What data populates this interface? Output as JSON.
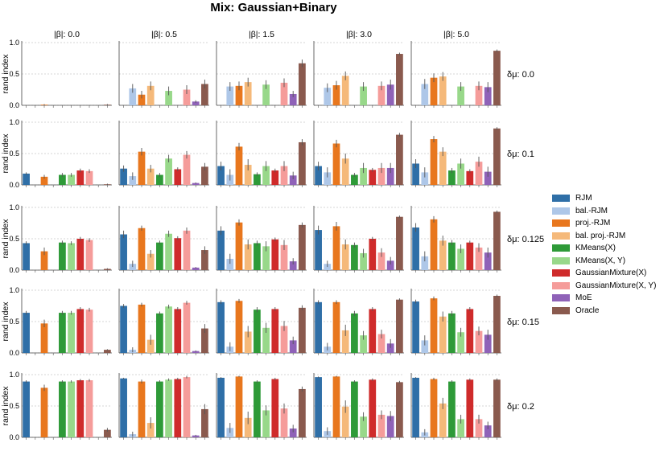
{
  "chart_data": {
    "type": "bar",
    "title": "Mix: Gaussian+Binary",
    "ylabel": "rand index",
    "ylim": [
      0,
      1
    ],
    "yticks": [
      "0.0",
      "0.5",
      "1.0"
    ],
    "grid": true,
    "legend_position": "right",
    "column_labels": [
      "|β|: 0.0",
      "|β|: 0.5",
      "|β|: 1.5",
      "|β|: 3.0",
      "|β|: 5.0"
    ],
    "row_labels": [
      "δμ: 0.0",
      "δμ: 0.1",
      "δμ: 0.125",
      "δμ: 0.15",
      "δμ: 0.2"
    ],
    "methods": [
      "RJM",
      "bal.-RJM",
      "proj.-RJM",
      "bal. proj.-RJM",
      "KMeans(X)",
      "KMeans(X, Y)",
      "GaussianMixture(X)",
      "GaussianMixture(X, Y)",
      "MoE",
      "Oracle"
    ],
    "colors": [
      "#2f6fa7",
      "#aec7e8",
      "#e8771e",
      "#f5b97a",
      "#2e9a38",
      "#98d88a",
      "#cf2b2b",
      "#f59c9a",
      "#8f62b8",
      "#8a5a4e"
    ],
    "panels": [
      [
        {
          "values": [
            0,
            0,
            0.01,
            0,
            0,
            0,
            0,
            0,
            0,
            0.01
          ],
          "errors": [
            0,
            0,
            0.01,
            0,
            0,
            0,
            0,
            0,
            0,
            0.01
          ]
        },
        {
          "values": [
            0,
            0.27,
            0.17,
            0.31,
            0,
            0.23,
            0,
            0.25,
            0.06,
            0.34
          ],
          "errors": [
            0,
            0.07,
            0.06,
            0.07,
            0,
            0.07,
            0,
            0.07,
            0.02,
            0.07
          ]
        },
        {
          "values": [
            0,
            0.3,
            0.31,
            0.37,
            0,
            0.33,
            0,
            0.36,
            0.18,
            0.67
          ],
          "errors": [
            0,
            0.07,
            0.07,
            0.07,
            0,
            0.07,
            0,
            0.07,
            0.05,
            0.06
          ]
        },
        {
          "values": [
            0,
            0.28,
            0.32,
            0.47,
            0,
            0.3,
            0,
            0.31,
            0.33,
            0.82
          ],
          "errors": [
            0,
            0.07,
            0.07,
            0.07,
            0,
            0.07,
            0,
            0.07,
            0.08,
            0.02
          ]
        },
        {
          "values": [
            0,
            0.34,
            0.44,
            0.46,
            0,
            0.3,
            0,
            0.31,
            0.29,
            0.87
          ],
          "errors": [
            0,
            0.08,
            0.07,
            0.07,
            0,
            0.07,
            0,
            0.07,
            0.08,
            0.02
          ]
        }
      ],
      [
        {
          "values": [
            0.18,
            0,
            0.13,
            0,
            0.16,
            0.16,
            0.23,
            0.22,
            0,
            0.01
          ],
          "errors": [
            0.02,
            0,
            0.03,
            0,
            0.03,
            0.03,
            0.03,
            0.03,
            0,
            0.01
          ]
        },
        {
          "values": [
            0.26,
            0.14,
            0.53,
            0.26,
            0.16,
            0.42,
            0.25,
            0.48,
            0.03,
            0.29
          ],
          "errors": [
            0.05,
            0.06,
            0.06,
            0.06,
            0.03,
            0.06,
            0.03,
            0.06,
            0.01,
            0.06
          ]
        },
        {
          "values": [
            0.3,
            0.16,
            0.61,
            0.32,
            0.17,
            0.3,
            0.23,
            0.3,
            0.15,
            0.68
          ],
          "errors": [
            0.07,
            0.09,
            0.06,
            0.09,
            0.03,
            0.08,
            0.03,
            0.08,
            0.06,
            0.05
          ]
        },
        {
          "values": [
            0.3,
            0.2,
            0.66,
            0.42,
            0.16,
            0.27,
            0.24,
            0.27,
            0.27,
            0.8
          ],
          "errors": [
            0.07,
            0.08,
            0.06,
            0.08,
            0.03,
            0.08,
            0.03,
            0.08,
            0.08,
            0.03
          ]
        },
        {
          "values": [
            0.34,
            0.2,
            0.73,
            0.53,
            0.23,
            0.34,
            0.22,
            0.37,
            0.21,
            0.9
          ],
          "errors": [
            0.07,
            0.08,
            0.05,
            0.07,
            0.04,
            0.08,
            0.03,
            0.08,
            0.08,
            0.02
          ]
        }
      ],
      [
        {
          "values": [
            0.43,
            0,
            0.3,
            0,
            0.44,
            0.43,
            0.5,
            0.48,
            0,
            0.02
          ],
          "errors": [
            0.03,
            0,
            0.06,
            0,
            0.03,
            0.03,
            0.03,
            0.03,
            0,
            0.01
          ]
        },
        {
          "values": [
            0.57,
            0.1,
            0.67,
            0.26,
            0.44,
            0.58,
            0.51,
            0.63,
            0.04,
            0.32
          ],
          "errors": [
            0.06,
            0.05,
            0.04,
            0.06,
            0.03,
            0.05,
            0.03,
            0.05,
            0.01,
            0.06
          ]
        },
        {
          "values": [
            0.63,
            0.18,
            0.76,
            0.41,
            0.43,
            0.38,
            0.49,
            0.4,
            0.14,
            0.72
          ],
          "errors": [
            0.07,
            0.08,
            0.05,
            0.08,
            0.04,
            0.08,
            0.03,
            0.08,
            0.05,
            0.04
          ]
        },
        {
          "values": [
            0.64,
            0.1,
            0.7,
            0.41,
            0.4,
            0.27,
            0.5,
            0.28,
            0.15,
            0.85
          ],
          "errors": [
            0.07,
            0.05,
            0.07,
            0.08,
            0.04,
            0.07,
            0.03,
            0.07,
            0.06,
            0.02
          ]
        },
        {
          "values": [
            0.68,
            0.22,
            0.81,
            0.47,
            0.44,
            0.34,
            0.44,
            0.36,
            0.28,
            0.93
          ],
          "errors": [
            0.07,
            0.08,
            0.05,
            0.08,
            0.04,
            0.07,
            0.03,
            0.07,
            0.08,
            0.02
          ]
        }
      ],
      [
        {
          "values": [
            0.64,
            0,
            0.47,
            0,
            0.64,
            0.64,
            0.7,
            0.69,
            0,
            0.05
          ],
          "errors": [
            0.03,
            0,
            0.06,
            0,
            0.03,
            0.03,
            0.03,
            0.03,
            0,
            0.01
          ]
        },
        {
          "values": [
            0.75,
            0.05,
            0.77,
            0.21,
            0.63,
            0.74,
            0.7,
            0.8,
            0.03,
            0.39
          ],
          "errors": [
            0.03,
            0.04,
            0.03,
            0.08,
            0.03,
            0.03,
            0.03,
            0.03,
            0.01,
            0.07
          ]
        },
        {
          "values": [
            0.81,
            0.1,
            0.83,
            0.34,
            0.69,
            0.4,
            0.7,
            0.43,
            0.2,
            0.72
          ],
          "errors": [
            0.03,
            0.07,
            0.03,
            0.09,
            0.04,
            0.08,
            0.03,
            0.08,
            0.06,
            0.04
          ]
        },
        {
          "values": [
            0.81,
            0.1,
            0.81,
            0.36,
            0.63,
            0.28,
            0.7,
            0.3,
            0.15,
            0.85
          ],
          "errors": [
            0.03,
            0.06,
            0.03,
            0.09,
            0.04,
            0.07,
            0.03,
            0.07,
            0.07,
            0.02
          ]
        },
        {
          "values": [
            0.82,
            0.2,
            0.87,
            0.58,
            0.63,
            0.33,
            0.7,
            0.35,
            0.29,
            0.91
          ],
          "errors": [
            0.03,
            0.08,
            0.03,
            0.08,
            0.04,
            0.07,
            0.03,
            0.07,
            0.08,
            0.02
          ]
        }
      ],
      [
        {
          "values": [
            0.89,
            0,
            0.79,
            0,
            0.89,
            0.89,
            0.91,
            0.91,
            0,
            0.12
          ],
          "errors": [
            0.02,
            0,
            0.05,
            0,
            0.02,
            0.02,
            0.02,
            0.02,
            0,
            0.03
          ]
        },
        {
          "values": [
            0.94,
            0.05,
            0.89,
            0.23,
            0.89,
            0.92,
            0.93,
            0.96,
            0.03,
            0.45
          ],
          "errors": [
            0.01,
            0.04,
            0.03,
            0.09,
            0.02,
            0.02,
            0.02,
            0.02,
            0.01,
            0.08
          ]
        },
        {
          "values": [
            0.95,
            0.15,
            0.97,
            0.31,
            0.89,
            0.43,
            0.93,
            0.46,
            0.14,
            0.77
          ],
          "errors": [
            0.01,
            0.08,
            0.01,
            0.1,
            0.02,
            0.08,
            0.02,
            0.08,
            0.06,
            0.04
          ]
        },
        {
          "values": [
            0.96,
            0.1,
            0.97,
            0.49,
            0.89,
            0.33,
            0.92,
            0.36,
            0.34,
            0.88
          ],
          "errors": [
            0.01,
            0.06,
            0.01,
            0.1,
            0.02,
            0.07,
            0.02,
            0.07,
            0.08,
            0.02
          ]
        },
        {
          "values": [
            0.95,
            0.08,
            0.93,
            0.54,
            0.89,
            0.29,
            0.92,
            0.29,
            0.19,
            0.92
          ],
          "errors": [
            0.01,
            0.05,
            0.02,
            0.09,
            0.02,
            0.07,
            0.02,
            0.07,
            0.06,
            0.02
          ]
        }
      ]
    ]
  }
}
